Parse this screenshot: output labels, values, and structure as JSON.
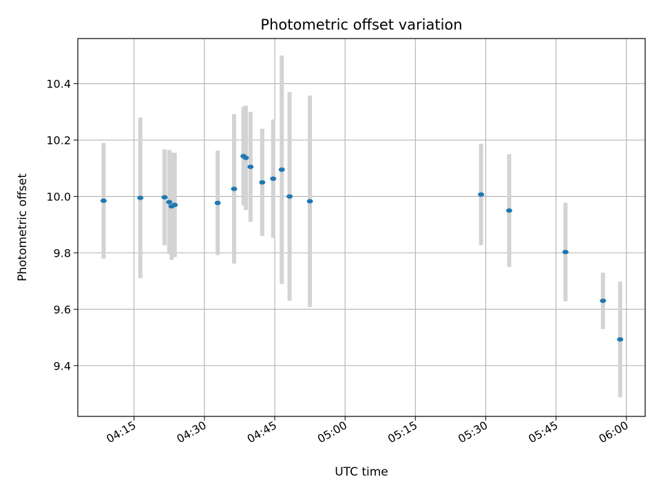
{
  "chart_data": {
    "type": "scatter",
    "title": "Photometric offset variation",
    "xlabel": "UTC time",
    "ylabel": "Photometric offset",
    "x_axis": {
      "kind": "time",
      "range": [
        "04:03",
        "06:04"
      ],
      "ticks": [
        "04:15",
        "04:30",
        "04:45",
        "05:00",
        "05:15",
        "05:30",
        "05:45",
        "06:00"
      ]
    },
    "y_axis": {
      "range": [
        9.22,
        10.56
      ],
      "ticks": [
        9.4,
        9.6,
        9.8,
        10.0,
        10.2,
        10.4
      ],
      "tick_labels": [
        "9.4",
        "9.6",
        "9.8",
        "10.0",
        "10.2",
        "10.4"
      ]
    },
    "grid": true,
    "colors": {
      "points": "#1f77b4",
      "error_bars": "#d3d3d3",
      "grid": "#b0b0b0"
    },
    "series": [
      {
        "points": [
          {
            "x": "04:08:30",
            "y": 9.985,
            "yerr": 0.205
          },
          {
            "x": "04:16:20",
            "y": 9.995,
            "yerr": 0.285
          },
          {
            "x": "04:21:30",
            "y": 9.997,
            "yerr": 0.17
          },
          {
            "x": "04:22:30",
            "y": 9.98,
            "yerr": 0.185
          },
          {
            "x": "04:23:00",
            "y": 9.965,
            "yerr": 0.19
          },
          {
            "x": "04:23:40",
            "y": 9.97,
            "yerr": 0.185
          },
          {
            "x": "04:32:50",
            "y": 9.977,
            "yerr": 0.185
          },
          {
            "x": "04:36:20",
            "y": 10.027,
            "yerr": 0.265
          },
          {
            "x": "04:38:20",
            "y": 10.143,
            "yerr": 0.175
          },
          {
            "x": "04:38:50",
            "y": 10.137,
            "yerr": 0.185
          },
          {
            "x": "04:39:50",
            "y": 10.105,
            "yerr": 0.195
          },
          {
            "x": "04:42:20",
            "y": 10.05,
            "yerr": 0.19
          },
          {
            "x": "04:44:40",
            "y": 10.063,
            "yerr": 0.21
          },
          {
            "x": "04:46:30",
            "y": 10.095,
            "yerr": 0.405
          },
          {
            "x": "04:48:10",
            "y": 10.0,
            "yerr": 0.37
          },
          {
            "x": "04:52:30",
            "y": 9.983,
            "yerr": 0.375
          },
          {
            "x": "05:29:00",
            "y": 10.007,
            "yerr": 0.18
          },
          {
            "x": "05:35:00",
            "y": 9.95,
            "yerr": 0.2
          },
          {
            "x": "05:47:00",
            "y": 9.803,
            "yerr": 0.175
          },
          {
            "x": "05:55:00",
            "y": 9.63,
            "yerr": 0.1
          },
          {
            "x": "05:58:40",
            "y": 9.493,
            "yerr": 0.205
          }
        ]
      }
    ]
  }
}
